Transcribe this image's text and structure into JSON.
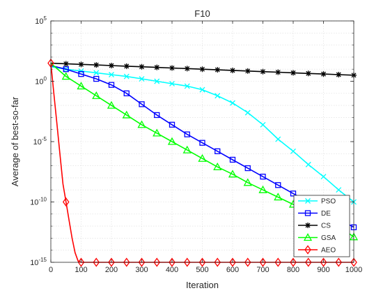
{
  "chart_data": {
    "type": "line",
    "title": "F10",
    "xlabel": "Iteration",
    "ylabel": "Average of best-so-far",
    "xlim": [
      0,
      1000
    ],
    "ylim_log10": [
      -15,
      5
    ],
    "yscale": "log",
    "grid": true,
    "legend_position": "bottom-right",
    "x_ticks": [
      0,
      100,
      200,
      300,
      400,
      500,
      600,
      700,
      800,
      900,
      1000
    ],
    "y_ticks": [
      {
        "exp": -15,
        "base": "10",
        "sup": "-15"
      },
      {
        "exp": -10,
        "base": "10",
        "sup": "-10"
      },
      {
        "exp": -5,
        "base": "10",
        "sup": "-5"
      },
      {
        "exp": 0,
        "base": "10",
        "sup": "0"
      },
      {
        "exp": 5,
        "base": "10",
        "sup": "5"
      }
    ],
    "series": [
      {
        "name": "PSO",
        "color": "#00FFFF",
        "marker": "x",
        "x": [
          0,
          50,
          100,
          150,
          200,
          250,
          300,
          350,
          400,
          450,
          500,
          550,
          600,
          650,
          700,
          750,
          800,
          850,
          900,
          950,
          1000
        ],
        "log10y": [
          1.2,
          1.0,
          0.85,
          0.7,
          0.55,
          0.4,
          0.2,
          0.0,
          -0.2,
          -0.4,
          -0.7,
          -1.2,
          -1.8,
          -2.6,
          -3.6,
          -4.8,
          -5.8,
          -6.9,
          -7.9,
          -9.0,
          -10.0
        ],
        "marker_x": [
          50,
          100,
          150,
          200,
          250,
          300,
          350,
          400,
          450,
          500,
          550,
          600,
          650,
          700,
          750,
          800,
          850,
          900,
          950,
          1000
        ]
      },
      {
        "name": "DE",
        "color": "#0000FF",
        "marker": "square",
        "x": [
          0,
          50,
          100,
          150,
          200,
          250,
          300,
          350,
          400,
          450,
          500,
          550,
          600,
          650,
          700,
          750,
          800,
          850,
          900,
          950,
          1000
        ],
        "log10y": [
          1.3,
          1.0,
          0.6,
          0.2,
          -0.3,
          -1.0,
          -1.9,
          -2.8,
          -3.6,
          -4.4,
          -5.1,
          -5.8,
          -6.5,
          -7.2,
          -7.9,
          -8.6,
          -9.3,
          -10.0,
          -10.7,
          -11.4,
          -12.1
        ],
        "marker_x": [
          50,
          100,
          150,
          200,
          250,
          300,
          350,
          400,
          450,
          500,
          550,
          600,
          650,
          700,
          750,
          800,
          850,
          900,
          950,
          1000
        ]
      },
      {
        "name": "CS",
        "color": "#000000",
        "marker": "asterisk",
        "x": [
          0,
          50,
          100,
          150,
          200,
          250,
          300,
          350,
          400,
          450,
          500,
          550,
          600,
          650,
          700,
          750,
          800,
          850,
          900,
          950,
          1000
        ],
        "log10y": [
          1.5,
          1.45,
          1.4,
          1.35,
          1.3,
          1.25,
          1.2,
          1.15,
          1.1,
          1.05,
          1.0,
          0.95,
          0.9,
          0.85,
          0.8,
          0.75,
          0.7,
          0.65,
          0.6,
          0.55,
          0.5
        ],
        "marker_x": [
          50,
          100,
          150,
          200,
          250,
          300,
          350,
          400,
          450,
          500,
          550,
          600,
          650,
          700,
          750,
          800,
          850,
          900,
          950,
          1000
        ]
      },
      {
        "name": "GSA",
        "color": "#00FF00",
        "marker": "triangle",
        "x": [
          0,
          50,
          100,
          150,
          200,
          250,
          300,
          350,
          400,
          450,
          500,
          550,
          600,
          650,
          700,
          750,
          800,
          850,
          900,
          950,
          1000
        ],
        "log10y": [
          1.5,
          0.4,
          -0.4,
          -1.2,
          -2.0,
          -2.8,
          -3.6,
          -4.3,
          -5.0,
          -5.7,
          -6.4,
          -7.1,
          -7.7,
          -8.4,
          -9.0,
          -9.6,
          -10.2,
          -10.8,
          -11.4,
          -12.0,
          -12.9
        ],
        "marker_x": [
          50,
          100,
          150,
          200,
          250,
          300,
          350,
          400,
          450,
          500,
          550,
          600,
          650,
          700,
          750,
          800,
          850,
          900,
          950,
          1000
        ]
      },
      {
        "name": "AEO",
        "color": "#FF0000",
        "marker": "diamond",
        "x": [
          0,
          10,
          20,
          30,
          40,
          50,
          60,
          70,
          80,
          90,
          100,
          150,
          200,
          250,
          300,
          350,
          400,
          450,
          500,
          550,
          600,
          650,
          700,
          750,
          800,
          850,
          900,
          950,
          1000
        ],
        "log10y": [
          1.5,
          -1.0,
          -3.5,
          -6.0,
          -8.5,
          -10.0,
          -11.5,
          -13.0,
          -14.2,
          -14.9,
          -15.0,
          -15.0,
          -15.0,
          -15.0,
          -15.0,
          -15.0,
          -15.0,
          -15.0,
          -15.0,
          -15.0,
          -15.0,
          -15.0,
          -15.0,
          -15.0,
          -15.0,
          -15.0,
          -15.0,
          -15.0,
          -15.0
        ],
        "marker_x": [
          0,
          50,
          100,
          150,
          200,
          250,
          300,
          350,
          400,
          450,
          500,
          550,
          600,
          650,
          700,
          750,
          800,
          850,
          900,
          950,
          1000
        ]
      }
    ]
  }
}
